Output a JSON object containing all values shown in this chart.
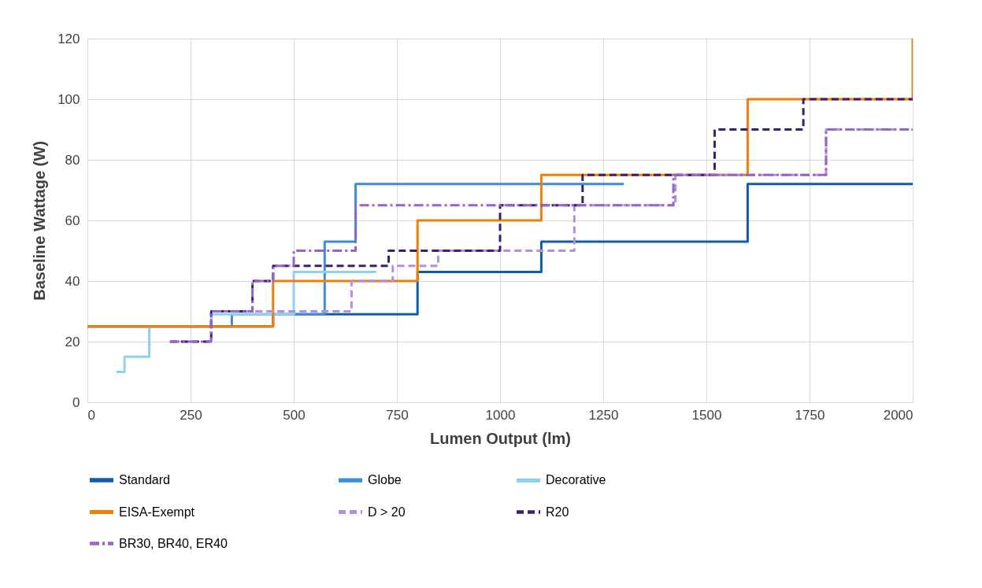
{
  "chart_data": {
    "type": "step",
    "xlabel": "Lumen Output (lm)",
    "ylabel": "Baseline Wattage (W)",
    "xlim": [
      0,
      2000
    ],
    "xticks": [
      0,
      250,
      500,
      750,
      1000,
      1250,
      1500,
      1750,
      2000
    ],
    "ylim": [
      0,
      120
    ],
    "yticks": [
      0,
      20,
      40,
      60,
      80,
      100,
      120
    ],
    "grid": true,
    "legend": "bottom",
    "series": [
      {
        "name": "Standard",
        "color": "#0b5ea8",
        "line_style": "solid",
        "x": [
          0,
          450,
          800,
          1100,
          1600,
          2000
        ],
        "values": [
          25,
          29,
          43,
          53,
          72,
          72
        ]
      },
      {
        "name": "Globe",
        "color": "#3a8fd6",
        "line_style": "solid",
        "x": [
          0,
          350,
          575,
          650,
          1300
        ],
        "values": [
          25,
          29,
          53,
          72,
          72
        ]
      },
      {
        "name": "Decorative",
        "color": "#8fd0ea",
        "line_style": "solid",
        "x": [
          70,
          90,
          150,
          300,
          500,
          700
        ],
        "values": [
          10,
          15,
          25,
          29,
          43,
          43
        ]
      },
      {
        "name": "EISA-Exempt",
        "color": "#f07f09",
        "line_style": "solid",
        "x": [
          0,
          450,
          800,
          1100,
          1600,
          2000,
          2000
        ],
        "values": [
          25,
          40,
          60,
          75,
          100,
          100,
          120
        ]
      },
      {
        "name": "D > 20",
        "color": "#b48ee0",
        "line_style": "dashed",
        "x": [
          300,
          640,
          740,
          850,
          1180,
          1425,
          1790,
          2000
        ],
        "values": [
          30,
          40,
          45,
          50,
          65,
          75,
          90,
          90
        ]
      },
      {
        "name": "R20",
        "color": "#3d1e6e",
        "line_style": "dashed",
        "x": [
          200,
          300,
          400,
          450,
          730,
          1000,
          1200,
          1520,
          1735,
          2000
        ],
        "values": [
          20,
          30,
          40,
          45,
          50,
          65,
          75,
          90,
          100,
          100
        ]
      },
      {
        "name": "BR30, BR40, ER40",
        "color": "#9a63c8",
        "line_style": "dashdot",
        "x": [
          200,
          300,
          400,
          450,
          500,
          650,
          1420,
          1790,
          2000
        ],
        "values": [
          20,
          30,
          40,
          45,
          50,
          65,
          75,
          90,
          90
        ]
      }
    ]
  }
}
